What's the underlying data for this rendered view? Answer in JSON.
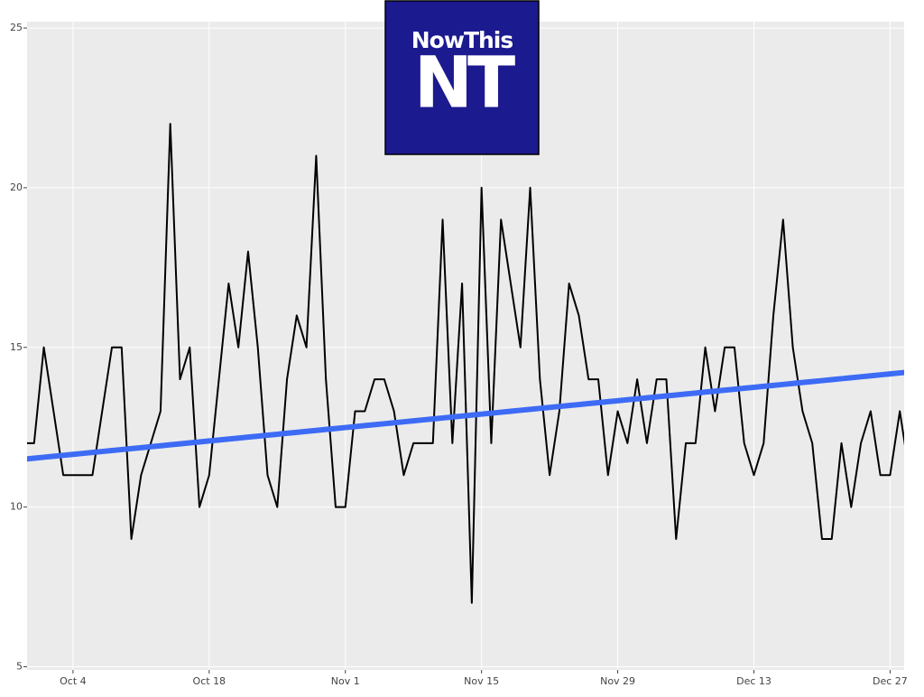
{
  "chart_data": {
    "type": "line",
    "categories": [
      null,
      null,
      null,
      null,
      null,
      "Oct 4",
      null,
      null,
      null,
      null,
      null,
      null,
      null,
      null,
      null,
      null,
      null,
      null,
      null,
      "Oct 18",
      null,
      null,
      null,
      null,
      null,
      null,
      null,
      null,
      null,
      null,
      null,
      null,
      null,
      "Nov 1",
      null,
      null,
      null,
      null,
      null,
      null,
      null,
      null,
      null,
      null,
      null,
      null,
      null,
      "Nov 15",
      null,
      null,
      null,
      null,
      null,
      null,
      null,
      null,
      null,
      null,
      null,
      null,
      null,
      "Nov 29",
      null,
      null,
      null,
      null,
      null,
      null,
      null,
      null,
      null,
      null,
      null,
      null,
      null,
      "Dec 13",
      null,
      null,
      null,
      null,
      null,
      null,
      null,
      null,
      null,
      null,
      null,
      null,
      null,
      "Dec 27",
      null,
      null
    ],
    "series": [
      {
        "color": "#000000",
        "values": [
          12,
          12,
          15,
          13,
          11,
          11,
          11,
          11,
          13,
          15,
          15,
          9,
          11,
          12,
          13,
          22,
          14,
          15,
          10,
          11,
          14,
          17,
          15,
          18,
          15,
          11,
          10,
          14,
          16,
          15,
          21,
          14,
          10,
          10,
          13,
          13,
          14,
          14,
          13,
          11,
          12,
          12,
          12,
          19,
          12,
          17,
          7,
          20,
          12,
          19,
          17,
          15,
          20,
          14,
          11,
          13,
          17,
          16,
          14,
          14,
          11,
          13,
          12,
          14,
          12,
          14,
          14,
          9,
          12,
          12,
          15,
          13,
          15,
          15,
          12,
          11,
          12,
          16,
          19,
          15,
          13,
          12,
          9,
          9,
          12,
          10,
          12,
          13,
          11,
          11,
          13,
          11
        ]
      },
      {
        "color": "#3d6bf5",
        "values": [
          11.5,
          11.53,
          11.56,
          11.59,
          11.62,
          11.65,
          11.68,
          11.71,
          11.74,
          11.77,
          11.8,
          11.83,
          11.86,
          11.89,
          11.92,
          11.95,
          11.98,
          12.01,
          12.04,
          12.07,
          12.1,
          12.13,
          12.16,
          12.19,
          12.22,
          12.25,
          12.28,
          12.31,
          12.34,
          12.37,
          12.4,
          12.43,
          12.46,
          12.49,
          12.52,
          12.55,
          12.58,
          12.61,
          12.64,
          12.67,
          12.7,
          12.73,
          12.76,
          12.79,
          12.82,
          12.85,
          12.88,
          12.91,
          12.94,
          12.97,
          13.0,
          13.03,
          13.06,
          13.09,
          13.12,
          13.15,
          13.18,
          13.21,
          13.24,
          13.27,
          13.3,
          13.33,
          13.36,
          13.39,
          13.42,
          13.45,
          13.48,
          13.51,
          13.54,
          13.57,
          13.6,
          13.63,
          13.66,
          13.69,
          13.72,
          13.75,
          13.78,
          13.81,
          13.84,
          13.87,
          13.9,
          13.93,
          13.96,
          13.99,
          14.02,
          14.05,
          14.08,
          14.11,
          14.14,
          14.17,
          14.2,
          14.23
        ]
      }
    ],
    "ylim": [
      4.9,
      25.2
    ],
    "yticks": [
      5,
      10,
      15,
      20,
      25
    ],
    "grid": true,
    "background": "#ebebeb"
  },
  "logo": {
    "text": "NowThis",
    "mark": "NT",
    "color": "#1c1a8f"
  }
}
